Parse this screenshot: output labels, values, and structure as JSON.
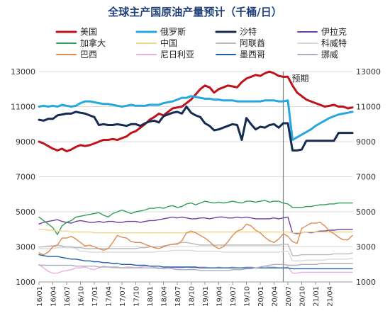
{
  "chart_data": {
    "type": "line",
    "title": "全球主产国原油产量预计（千桶/日）",
    "annotation": "预期",
    "ylim": [
      1000,
      13000
    ],
    "yticks": [
      1000,
      3000,
      5000,
      7000,
      9000,
      11000,
      13000
    ],
    "x_labels": [
      "16/01",
      "16/04",
      "16/07",
      "16/10",
      "17/01",
      "17/04",
      "17/07",
      "17/10",
      "18/01",
      "18/04",
      "18/07",
      "18/10",
      "19/01",
      "19/04",
      "19/07",
      "19/10",
      "20/01",
      "20/04",
      "20/07",
      "20/10",
      "21/01",
      "21/04"
    ],
    "forecast_start": "20/06",
    "series": [
      {
        "name": "美国",
        "color": "#c0121b",
        "width": 3,
        "values": [
          9000,
          8900,
          8750,
          8600,
          8500,
          8600,
          8450,
          8550,
          8700,
          8800,
          8750,
          8800,
          8900,
          9000,
          9100,
          9100,
          9150,
          9100,
          9200,
          9300,
          9500,
          9600,
          9800,
          10000,
          10250,
          10400,
          10600,
          10500,
          10700,
          10900,
          10950,
          11000,
          11200,
          11400,
          11700,
          12000,
          12200,
          12100,
          11800,
          12000,
          12100,
          12200,
          12150,
          12100,
          12400,
          12600,
          12700,
          12800,
          12750,
          12900,
          13000,
          12900,
          12750,
          12700,
          12700,
          12200,
          11800,
          11600,
          11400,
          11300,
          11200,
          11100,
          11000,
          11050,
          11100,
          11000,
          11000,
          10900,
          10950
        ]
      },
      {
        "name": "俄罗斯",
        "color": "#27a7e0",
        "width": 3,
        "values": [
          11000,
          11050,
          11000,
          11050,
          11000,
          11100,
          11050,
          11000,
          11050,
          11200,
          11300,
          11300,
          11250,
          11200,
          11150,
          11150,
          11100,
          11050,
          11000,
          11050,
          11100,
          11050,
          11050,
          11050,
          11100,
          11100,
          11100,
          11200,
          11250,
          11300,
          11400,
          11500,
          11500,
          11600,
          11550,
          11500,
          11450,
          11450,
          11400,
          11400,
          11350,
          11350,
          11350,
          11300,
          11300,
          11300,
          11300,
          11300,
          11300,
          11350,
          11350,
          11350,
          11300,
          11300,
          11350,
          9100,
          9250,
          9400,
          9550,
          9700,
          9900,
          10050,
          10200,
          10350,
          10450,
          10550,
          10600,
          10650,
          10700
        ]
      },
      {
        "name": "沙特",
        "color": "#162b52",
        "width": 3,
        "values": [
          10250,
          10200,
          10300,
          10300,
          10500,
          10550,
          10600,
          10600,
          10700,
          10650,
          10600,
          10500,
          10400,
          9950,
          10000,
          9950,
          9950,
          10000,
          9950,
          9900,
          10000,
          10000,
          9900,
          10050,
          10150,
          10200,
          10100,
          10450,
          10550,
          10650,
          10700,
          10600,
          11000,
          10650,
          10500,
          10400,
          10050,
          9900,
          9650,
          9700,
          9800,
          9900,
          10000,
          9950,
          9100,
          10350,
          10000,
          9700,
          9850,
          9800,
          9950,
          10000,
          9800,
          10050,
          10050,
          8500,
          8500,
          8550,
          9050,
          9050,
          9050,
          9050,
          9050,
          9050,
          9050,
          9500,
          9500,
          9500,
          9500
        ]
      },
      {
        "name": "伊拉克",
        "color": "#6f3fa3",
        "width": 1.4,
        "values": [
          4300,
          4400,
          4450,
          4500,
          4550,
          4450,
          4400,
          4350,
          4450,
          4500,
          4450,
          4400,
          4400,
          4450,
          4400,
          4450,
          4450,
          4400,
          4400,
          4450,
          4450,
          4450,
          4400,
          4450,
          4500,
          4500,
          4550,
          4600,
          4650,
          4700,
          4650,
          4700,
          4650,
          4600,
          4600,
          4650,
          4650,
          4600,
          4650,
          4700,
          4700,
          4650,
          4650,
          4700,
          4650,
          4700,
          4650,
          4600,
          4600,
          4600,
          4600,
          4650,
          4600,
          4650,
          4700,
          3800,
          3750,
          3800,
          3850,
          3800,
          3850,
          3900,
          3900,
          3950,
          3950,
          4000,
          4000,
          4000,
          4000
        ]
      },
      {
        "name": "加拿大",
        "color": "#2f9e54",
        "width": 1.4,
        "values": [
          4700,
          4500,
          4300,
          4100,
          3700,
          4200,
          4400,
          4500,
          4700,
          4750,
          4800,
          4850,
          4900,
          4950,
          4800,
          4700,
          4900,
          5000,
          5100,
          5000,
          4900,
          5000,
          5050,
          5100,
          5200,
          5200,
          5250,
          5200,
          5300,
          5350,
          5250,
          5300,
          5450,
          5500,
          5400,
          5500,
          5600,
          5550,
          5500,
          5550,
          5500,
          5550,
          5600,
          5550,
          5500,
          5600,
          5600,
          5550,
          5600,
          5650,
          5550,
          5600,
          5600,
          5500,
          5450,
          5250,
          5250,
          5250,
          5300,
          5300,
          5350,
          5400,
          5400,
          5450,
          5450,
          5500,
          5500,
          5500,
          5500
        ]
      },
      {
        "name": "中国",
        "color": "#f0d68a",
        "width": 1.4,
        "values": [
          4000,
          4000,
          3950,
          3950,
          3900,
          3900,
          3900,
          3850,
          3850,
          3850,
          3850,
          3850,
          3800,
          3800,
          3800,
          3800,
          3800,
          3800,
          3800,
          3800,
          3800,
          3800,
          3800,
          3800,
          3800,
          3800,
          3800,
          3800,
          3800,
          3800,
          3800,
          3800,
          3800,
          3800,
          3850,
          3850,
          3850,
          3850,
          3850,
          3850,
          3850,
          3850,
          3850,
          3850,
          3850,
          3850,
          3850,
          3850,
          3850,
          3850,
          3850,
          3850,
          3850,
          3850,
          3850,
          3800,
          3800,
          3800,
          3850,
          3850,
          3850,
          3850,
          3850,
          3850,
          3850,
          3850,
          3850,
          3850,
          3850
        ]
      },
      {
        "name": "阿联酋",
        "color": "#b9b9b9",
        "width": 1.4,
        "values": [
          3000,
          3000,
          3050,
          3050,
          3100,
          3050,
          3000,
          3000,
          2950,
          2950,
          2900,
          2900,
          2900,
          2900,
          2900,
          2900,
          2900,
          2900,
          2900,
          2900,
          2900,
          2900,
          2950,
          2950,
          3000,
          3000,
          3000,
          3050,
          3100,
          3150,
          3200,
          3250,
          3250,
          3200,
          3150,
          3100,
          3100,
          3100,
          3100,
          3100,
          3100,
          3100,
          3100,
          3100,
          3100,
          3100,
          3100,
          3100,
          3100,
          3100,
          3100,
          3100,
          3100,
          3150,
          3150,
          2500,
          2500,
          2550,
          2550,
          2550,
          2550,
          2550,
          2550,
          2550,
          2600,
          2600,
          2600,
          2600,
          2650
        ]
      },
      {
        "name": "科威特",
        "color": "#d8d8d8",
        "width": 1.4,
        "values": [
          2900,
          2900,
          2900,
          2900,
          2950,
          2950,
          2950,
          2950,
          2900,
          2750,
          2750,
          2700,
          2700,
          2700,
          2700,
          2700,
          2700,
          2700,
          2700,
          2700,
          2700,
          2700,
          2700,
          2700,
          2700,
          2700,
          2750,
          2750,
          2750,
          2800,
          2800,
          2800,
          2800,
          2800,
          2750,
          2750,
          2750,
          2750,
          2750,
          2750,
          2700,
          2700,
          2700,
          2700,
          2700,
          2700,
          2700,
          2700,
          2700,
          2700,
          2700,
          2700,
          2700,
          2750,
          2750,
          2200,
          2200,
          2200,
          2250,
          2250,
          2250,
          2250,
          2250,
          2300,
          2300,
          2300,
          2300,
          2300,
          2350
        ]
      },
      {
        "name": "巴西",
        "color": "#e08a4e",
        "width": 1.4,
        "values": [
          2650,
          2550,
          2700,
          3000,
          3100,
          3500,
          3500,
          3600,
          3450,
          3250,
          3050,
          3100,
          3000,
          2900,
          2800,
          2900,
          3250,
          3650,
          3550,
          3500,
          3300,
          3250,
          3250,
          3150,
          3050,
          2950,
          2900,
          3000,
          3100,
          3150,
          3150,
          3350,
          3800,
          3900,
          3800,
          3650,
          3500,
          3300,
          3050,
          2900,
          3000,
          3300,
          3650,
          3900,
          4000,
          4300,
          4200,
          3950,
          3800,
          3550,
          3350,
          3250,
          3450,
          3750,
          3600,
          3300,
          3200,
          4050,
          4200,
          4350,
          4350,
          4400,
          4200,
          3900,
          3750,
          3550,
          3400,
          3400,
          3650
        ]
      },
      {
        "name": "尼日利亚",
        "color": "#eaaee0",
        "width": 1.4,
        "values": [
          2000,
          1800,
          1600,
          1500,
          1500,
          1600,
          1650,
          1700,
          1800,
          1800,
          1850,
          1750,
          1700,
          1800,
          1900,
          1850,
          1800,
          1800,
          1800,
          1850,
          1850,
          1800,
          1850,
          1900,
          1900,
          1850,
          1800,
          1800,
          1850,
          1800,
          1800,
          1800,
          1850,
          1800,
          1800,
          1850,
          1850,
          1800,
          1800,
          1850,
          1800,
          1800,
          1850,
          1800,
          1800,
          1850,
          1850,
          1800,
          1850,
          1900,
          1850,
          1850,
          1800,
          1800,
          1850,
          1500,
          1500,
          1550,
          1550,
          1550,
          1550,
          1550,
          1550,
          1550,
          1550,
          1550,
          1550,
          1550,
          1550
        ]
      },
      {
        "name": "墨西哥",
        "color": "#1d5fa8",
        "width": 1.4,
        "values": [
          2550,
          2500,
          2450,
          2450,
          2450,
          2400,
          2350,
          2300,
          2300,
          2250,
          2200,
          2200,
          2150,
          2150,
          2100,
          2100,
          2050,
          2050,
          2000,
          2000,
          2000,
          1950,
          1950,
          1950,
          1900,
          1900,
          1900,
          1850,
          1850,
          1850,
          1850,
          1850,
          1850,
          1850,
          1850,
          1800,
          1800,
          1800,
          1800,
          1800,
          1800,
          1800,
          1800,
          1800,
          1800,
          1800,
          1800,
          1800,
          1800,
          1800,
          1800,
          1800,
          1800,
          1800,
          1800,
          1750,
          1750,
          1750,
          1750,
          1750,
          1750,
          1750,
          1750,
          1750,
          1750,
          1750,
          1750,
          1750,
          1750
        ]
      },
      {
        "name": "挪威",
        "color": "#a8b2bf",
        "width": 1.4,
        "values": [
          1950,
          1950,
          1950,
          1950,
          1950,
          1950,
          1950,
          1950,
          1900,
          1900,
          1900,
          1900,
          1900,
          1850,
          1850,
          1850,
          1850,
          1850,
          1800,
          1800,
          1800,
          1800,
          1800,
          1800,
          1800,
          1800,
          1750,
          1750,
          1750,
          1750,
          1700,
          1700,
          1700,
          1700,
          1700,
          1650,
          1650,
          1650,
          1650,
          1650,
          1650,
          1650,
          1700,
          1700,
          1700,
          1750,
          1750,
          1800,
          1850,
          1900,
          1950,
          2000,
          2000,
          2000,
          1950,
          1950,
          1950,
          2000,
          2000,
          2000,
          2000,
          2050,
          2050,
          2050,
          2050,
          2050,
          2050,
          2050,
          2050
        ]
      }
    ]
  }
}
